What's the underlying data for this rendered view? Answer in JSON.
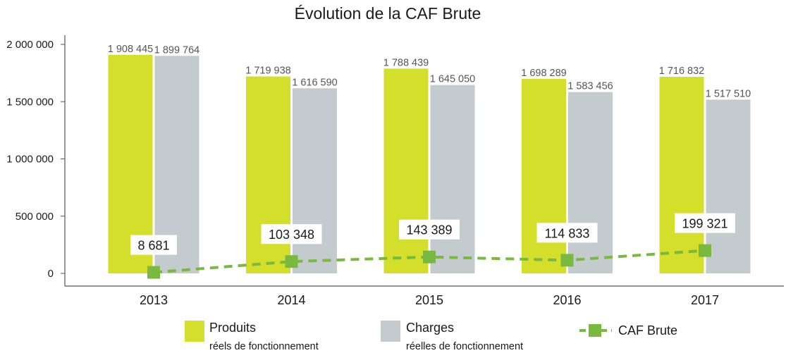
{
  "chart_data": {
    "type": "bar",
    "title": "Évolution de la CAF Brute",
    "categories": [
      "2013",
      "2014",
      "2015",
      "2016",
      "2017"
    ],
    "ylim": [
      0,
      2000000
    ],
    "yticks": [
      0,
      500000,
      1000000,
      1500000,
      2000000
    ],
    "ytick_labels": [
      "0",
      "500 000",
      "1 000 000",
      "1 500 000",
      "2 000 000"
    ],
    "grid": false,
    "legend_position": "bottom",
    "series": [
      {
        "name": "Produits",
        "name_sub": "réels de fonctionnement",
        "type": "bar",
        "color": "#d4df2b",
        "values": [
          1908445,
          1719938,
          1788439,
          1698289,
          1716832
        ],
        "labels": [
          "1 908 445",
          "1 719 938",
          "1 788 439",
          "1 698 289",
          "1 716 832"
        ]
      },
      {
        "name": "Charges",
        "name_sub": "réelles de fonctionnement",
        "type": "bar",
        "color": "#c3cbcf",
        "values": [
          1899764,
          1616590,
          1645050,
          1583456,
          1517510
        ],
        "labels": [
          "1 899 764",
          "1 616 590",
          "1 645 050",
          "1 583 456",
          "1 517 510"
        ]
      },
      {
        "name": "CAF Brute",
        "type": "line",
        "style": "dashed",
        "color": "#7ab940",
        "values": [
          8681,
          103348,
          143389,
          114833,
          199321
        ],
        "labels": [
          "8 681",
          "103 348",
          "143 389",
          "114 833",
          "199 321"
        ]
      }
    ]
  }
}
